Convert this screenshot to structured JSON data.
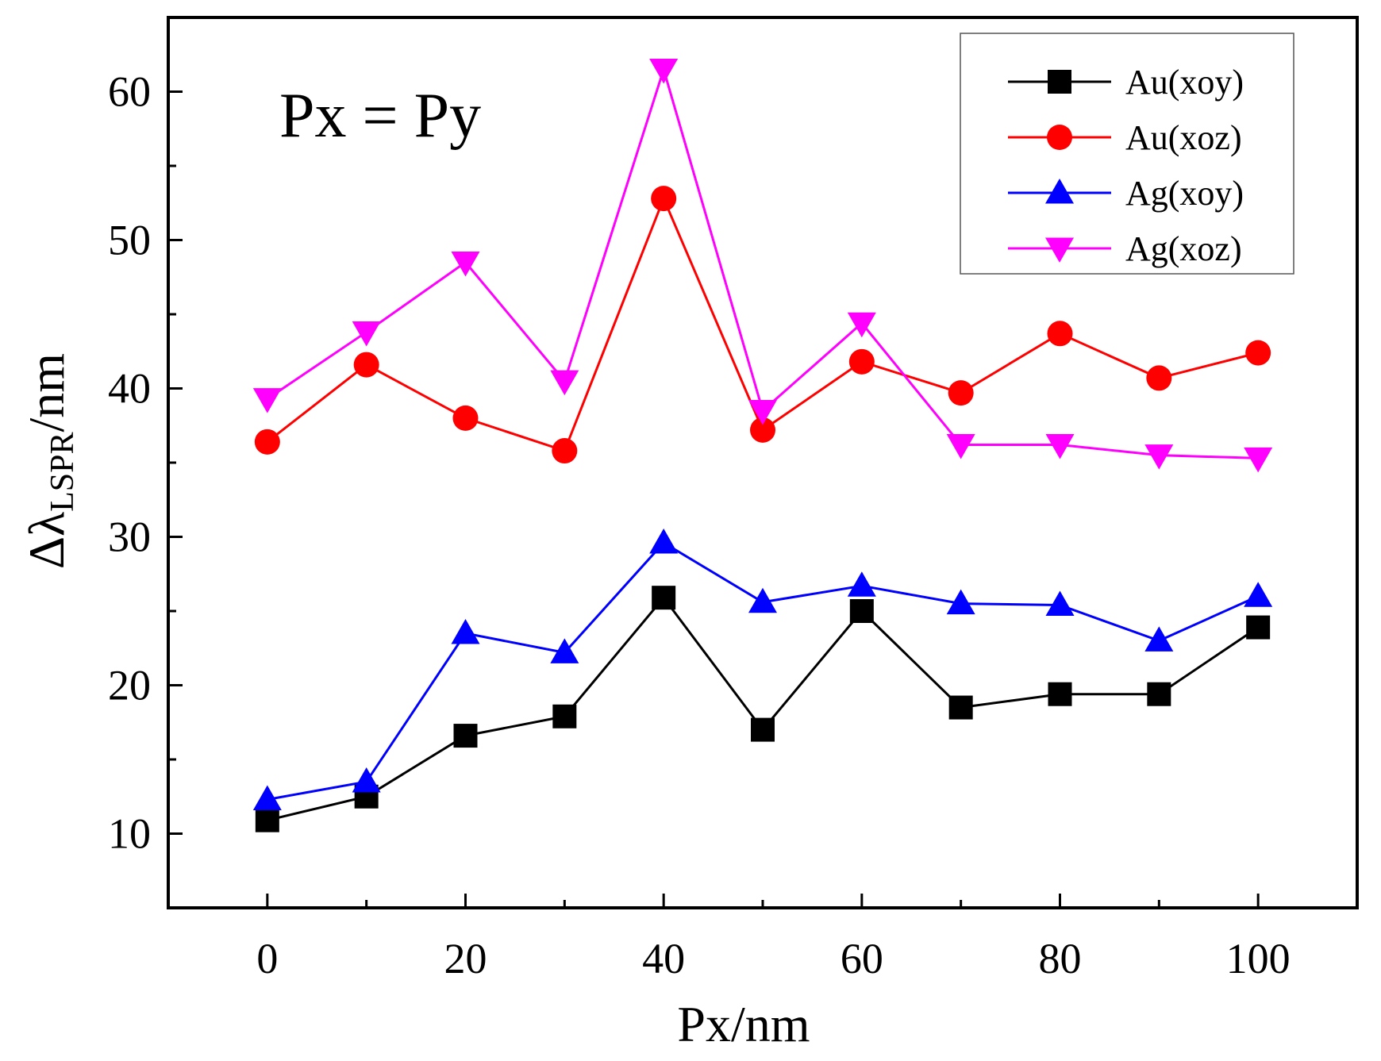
{
  "chart_data": {
    "type": "line",
    "title": "",
    "annotation": "Px = Py",
    "xlabel": "Px/nm",
    "ylabel": {
      "main": "Δλ",
      "subscript": "LSPR",
      "suffix": "/nm"
    },
    "xlim": [
      -10,
      110
    ],
    "ylim": [
      5,
      65
    ],
    "x_ticks": [
      0,
      20,
      40,
      60,
      80,
      100
    ],
    "x_minor_ticks": [
      10,
      30,
      50,
      70,
      90
    ],
    "y_ticks": [
      10,
      20,
      30,
      40,
      50,
      60
    ],
    "y_minor_ticks": [
      15,
      25,
      35,
      45,
      55
    ],
    "grid": false,
    "legend_position": "top-right",
    "x": [
      0,
      10,
      20,
      30,
      40,
      50,
      60,
      70,
      80,
      90,
      100
    ],
    "series": [
      {
        "name": "Au(xoy)",
        "color": "#000000",
        "marker": "square",
        "values": [
          10.9,
          12.5,
          16.6,
          17.9,
          25.9,
          17.0,
          25.0,
          18.5,
          19.4,
          19.4,
          23.9
        ]
      },
      {
        "name": "Au(xoz)",
        "color": "#ff0000",
        "marker": "circle",
        "values": [
          36.4,
          41.6,
          38.0,
          35.8,
          52.8,
          37.2,
          41.8,
          39.7,
          43.7,
          40.7,
          42.4
        ]
      },
      {
        "name": "Ag(xoy)",
        "color": "#0000ff",
        "marker": "triangle-up",
        "values": [
          12.3,
          13.5,
          23.5,
          22.2,
          29.6,
          25.6,
          26.7,
          25.5,
          25.4,
          23.0,
          26.0
        ]
      },
      {
        "name": "Ag(xoz)",
        "color": "#ff00ff",
        "marker": "triangle-down",
        "values": [
          39.3,
          43.8,
          48.5,
          40.5,
          61.5,
          38.5,
          44.4,
          36.2,
          36.2,
          35.5,
          35.3
        ]
      }
    ]
  }
}
